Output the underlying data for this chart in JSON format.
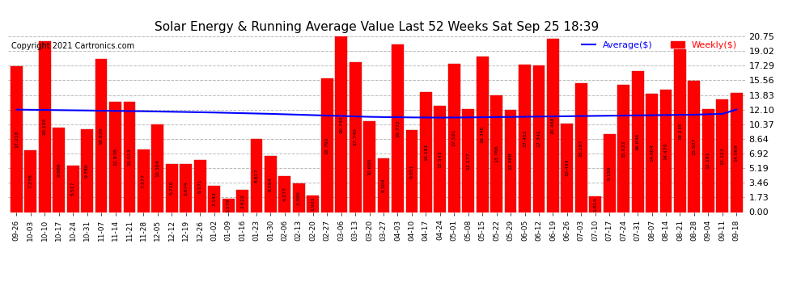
{
  "title": "Solar Energy & Running Average Value Last 52 Weeks Sat Sep 25 18:39",
  "copyright": "Copyright 2021 Cartronics.com",
  "legend_avg": "Average($)",
  "legend_weekly": "Weekly($)",
  "bar_color": "#FF0000",
  "avg_line_color": "#0000FF",
  "yticks": [
    0.0,
    1.73,
    3.46,
    5.19,
    6.92,
    8.64,
    10.37,
    12.1,
    13.83,
    15.56,
    17.29,
    19.02,
    20.75
  ],
  "ylim": [
    0,
    20.75
  ],
  "xlabel_dates": [
    "09-26",
    "10-03",
    "10-10",
    "10-17",
    "10-24",
    "10-31",
    "11-07",
    "11-14",
    "11-21",
    "11-28",
    "12-05",
    "12-12",
    "12-19",
    "12-26",
    "01-02",
    "01-09",
    "01-16",
    "01-23",
    "01-30",
    "02-06",
    "02-13",
    "02-20",
    "02-27",
    "03-06",
    "03-13",
    "03-20",
    "03-27",
    "04-03",
    "04-10",
    "04-17",
    "04-24",
    "05-01",
    "05-08",
    "05-15",
    "05-22",
    "05-29",
    "06-05",
    "06-12",
    "06-19",
    "06-26",
    "07-03",
    "07-10",
    "07-17",
    "07-24",
    "07-31",
    "08-07",
    "08-14",
    "08-21",
    "08-28",
    "09-04",
    "09-11",
    "09-18"
  ],
  "weekly_values": [
    17.218,
    7.278,
    20.195,
    9.986,
    5.517,
    9.786,
    18.039,
    12.978,
    13.013,
    7.377,
    10.304,
    5.716,
    5.674,
    6.171,
    3.143,
    1.579,
    2.622,
    8.617,
    6.594,
    4.277,
    3.38,
    1.921,
    15.792,
    20.745,
    17.74,
    10.695,
    6.304,
    19.772,
    9.651,
    14.181,
    12.543,
    17.521,
    12.177,
    18.346,
    13.766,
    12.088,
    17.452,
    17.341,
    20.468,
    10.459,
    15.187,
    1.814,
    9.159,
    15.022,
    16.646,
    14.004,
    14.47,
    19.235,
    15.507,
    12.191,
    13.323,
    14.069
  ],
  "avg_values": [
    12.1,
    12.08,
    12.06,
    12.04,
    12.02,
    12.0,
    11.97,
    11.95,
    11.93,
    11.91,
    11.88,
    11.85,
    11.82,
    11.79,
    11.76,
    11.72,
    11.68,
    11.64,
    11.6,
    11.55,
    11.5,
    11.45,
    11.4,
    11.35,
    11.3,
    11.25,
    11.22,
    11.2,
    11.18,
    11.17,
    11.16,
    11.17,
    11.18,
    11.2,
    11.22,
    11.24,
    11.26,
    11.28,
    11.3,
    11.32,
    11.34,
    11.36,
    11.38,
    11.4,
    11.42,
    11.44,
    11.46,
    11.48,
    11.5,
    11.55,
    11.6,
    12.1
  ],
  "background_color": "#FFFFFF",
  "grid_color": "#BBBBBB"
}
